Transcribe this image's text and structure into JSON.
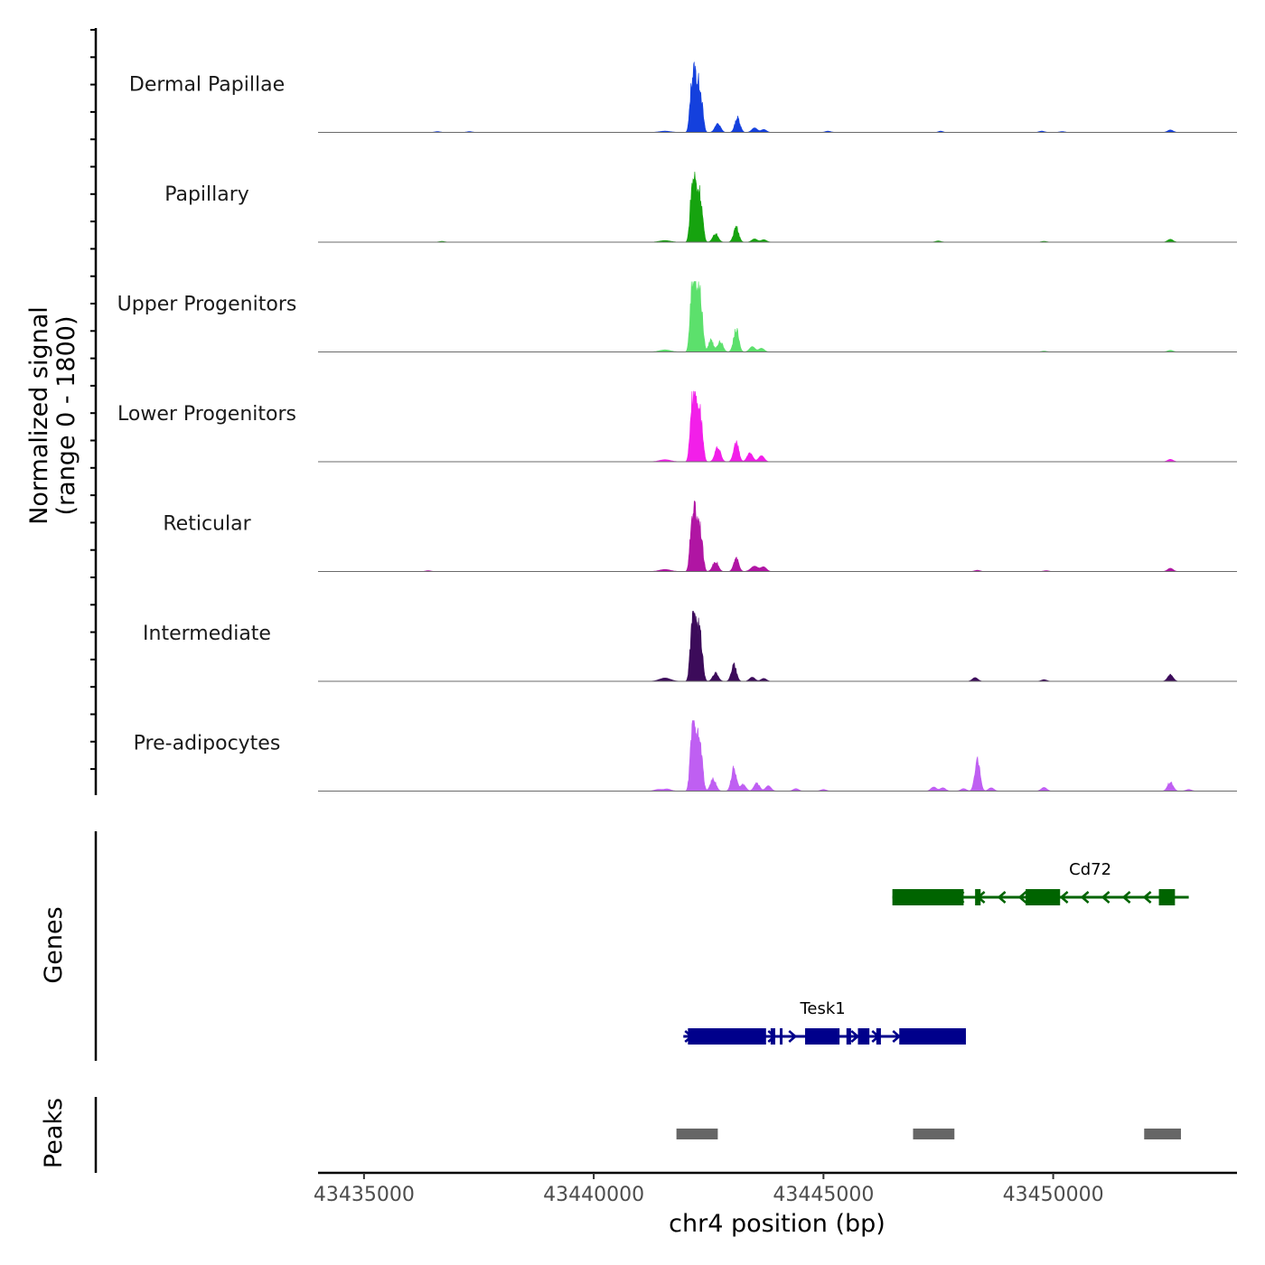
{
  "chart_data": {
    "type": "area",
    "chromosome": "chr4",
    "xlabel": "chr4 position (bp)",
    "xlim": [
      43434000,
      43454000
    ],
    "x_ticks": [
      43435000,
      43440000,
      43445000,
      43450000
    ],
    "x_tick_labels": [
      "43435000",
      "43440000",
      "43445000",
      "43450000"
    ],
    "ylabel_line1": "Normalized signal",
    "ylabel_line2": "(range 0 - 1800)",
    "ylim": [
      0,
      1800
    ],
    "series": [
      {
        "name": "Dermal Papillae",
        "color": "#1440dd",
        "peaks": [
          [
            43441550,
            30,
            120
          ],
          [
            43442130,
            1100,
            40
          ],
          [
            43442200,
            1200,
            35
          ],
          [
            43442280,
            1050,
            40
          ],
          [
            43442350,
            600,
            40
          ],
          [
            43442700,
            220,
            60
          ],
          [
            43443130,
            360,
            55
          ],
          [
            43443500,
            110,
            60
          ],
          [
            43443700,
            70,
            60
          ],
          [
            43445100,
            30,
            60
          ],
          [
            43436600,
            20,
            60
          ],
          [
            43437300,
            20,
            60
          ],
          [
            43447550,
            30,
            50
          ],
          [
            43449750,
            30,
            60
          ],
          [
            43450200,
            20,
            60
          ],
          [
            43452550,
            60,
            60
          ]
        ]
      },
      {
        "name": "Papillary",
        "color": "#16a30f",
        "peaks": [
          [
            43441550,
            40,
            120
          ],
          [
            43442130,
            1150,
            40
          ],
          [
            43442200,
            1250,
            35
          ],
          [
            43442280,
            1100,
            40
          ],
          [
            43442350,
            650,
            40
          ],
          [
            43442650,
            200,
            60
          ],
          [
            43443100,
            380,
            55
          ],
          [
            43443500,
            80,
            60
          ],
          [
            43443700,
            60,
            60
          ],
          [
            43436700,
            20,
            60
          ],
          [
            43447500,
            30,
            60
          ],
          [
            43449800,
            20,
            60
          ],
          [
            43452550,
            70,
            60
          ]
        ]
      },
      {
        "name": "Upper Progenitors",
        "color": "#5ce06c",
        "peaks": [
          [
            43441550,
            50,
            120
          ],
          [
            43442130,
            1400,
            40
          ],
          [
            43442200,
            1550,
            35
          ],
          [
            43442280,
            1350,
            40
          ],
          [
            43442350,
            800,
            40
          ],
          [
            43442550,
            300,
            50
          ],
          [
            43442750,
            250,
            60
          ],
          [
            43443100,
            550,
            55
          ],
          [
            43443450,
            130,
            60
          ],
          [
            43443650,
            90,
            60
          ],
          [
            43449800,
            20,
            60
          ],
          [
            43452550,
            40,
            60
          ]
        ]
      },
      {
        "name": "Lower Progenitors",
        "color": "#f21fe9",
        "peaks": [
          [
            43441550,
            50,
            120
          ],
          [
            43442130,
            1250,
            40
          ],
          [
            43442200,
            1400,
            35
          ],
          [
            43442280,
            1200,
            40
          ],
          [
            43442350,
            700,
            40
          ],
          [
            43442700,
            350,
            60
          ],
          [
            43443100,
            480,
            55
          ],
          [
            43443400,
            220,
            60
          ],
          [
            43443650,
            150,
            60
          ],
          [
            43452550,
            60,
            60
          ]
        ]
      },
      {
        "name": "Reticular",
        "color": "#b015a3",
        "peaks": [
          [
            43441550,
            50,
            120
          ],
          [
            43442130,
            1100,
            40
          ],
          [
            43442200,
            1300,
            35
          ],
          [
            43442280,
            1100,
            40
          ],
          [
            43442350,
            600,
            40
          ],
          [
            43442650,
            250,
            60
          ],
          [
            43443100,
            320,
            55
          ],
          [
            43443500,
            130,
            80
          ],
          [
            43443700,
            110,
            60
          ],
          [
            43436400,
            20,
            60
          ],
          [
            43448350,
            30,
            60
          ],
          [
            43449850,
            20,
            60
          ],
          [
            43452550,
            80,
            60
          ]
        ]
      },
      {
        "name": "Intermediate",
        "color": "#3c0b5a",
        "peaks": [
          [
            43441550,
            80,
            120
          ],
          [
            43442130,
            1150,
            40
          ],
          [
            43442200,
            1350,
            35
          ],
          [
            43442280,
            1150,
            40
          ],
          [
            43442350,
            650,
            40
          ],
          [
            43442650,
            200,
            60
          ],
          [
            43443050,
            400,
            55
          ],
          [
            43443450,
            100,
            60
          ],
          [
            43443700,
            70,
            60
          ],
          [
            43448300,
            90,
            60
          ],
          [
            43449800,
            40,
            60
          ],
          [
            43452550,
            160,
            60
          ]
        ]
      },
      {
        "name": "Pre-adipocytes",
        "color": "#bf5ff2",
        "peaks": [
          [
            43441400,
            40,
            80
          ],
          [
            43441600,
            50,
            80
          ],
          [
            43442130,
            1200,
            40
          ],
          [
            43442200,
            1500,
            35
          ],
          [
            43442280,
            1100,
            40
          ],
          [
            43442350,
            650,
            40
          ],
          [
            43442600,
            300,
            60
          ],
          [
            43443050,
            550,
            55
          ],
          [
            43443250,
            160,
            60
          ],
          [
            43443550,
            200,
            60
          ],
          [
            43443800,
            130,
            60
          ],
          [
            43444400,
            60,
            60
          ],
          [
            43445000,
            40,
            60
          ],
          [
            43447400,
            100,
            60
          ],
          [
            43447600,
            80,
            60
          ],
          [
            43448050,
            60,
            60
          ],
          [
            43448350,
            800,
            55
          ],
          [
            43448650,
            80,
            60
          ],
          [
            43449800,
            90,
            60
          ],
          [
            43452550,
            220,
            60
          ],
          [
            43452950,
            40,
            60
          ]
        ]
      }
    ],
    "genes_track": {
      "label": "Genes",
      "genes": [
        {
          "name": "Cd72",
          "strand": "-",
          "color": "#006400",
          "start": 43446500,
          "end": 43452950,
          "exons": [
            [
              43446500,
              43448050
            ],
            [
              43448300,
              43448420
            ],
            [
              43449400,
              43450150
            ],
            [
              43452300,
              43452650
            ]
          ]
        },
        {
          "name": "Tesk1",
          "strand": "+",
          "color": "#00008b",
          "start": 43441950,
          "end": 43448100,
          "exons": [
            [
              43442050,
              43443750
            ],
            [
              43443850,
              43443950
            ],
            [
              43444050,
              43444100
            ],
            [
              43444600,
              43445350
            ],
            [
              43445500,
              43445600
            ],
            [
              43445750,
              43446000
            ],
            [
              43446150,
              43446250
            ],
            [
              43446650,
              43448100
            ]
          ]
        }
      ]
    },
    "peaks_track": {
      "label": "Peaks",
      "peaks": [
        [
          43441800,
          43442700
        ],
        [
          43446950,
          43447850
        ],
        [
          43451980,
          43452780
        ]
      ]
    }
  }
}
